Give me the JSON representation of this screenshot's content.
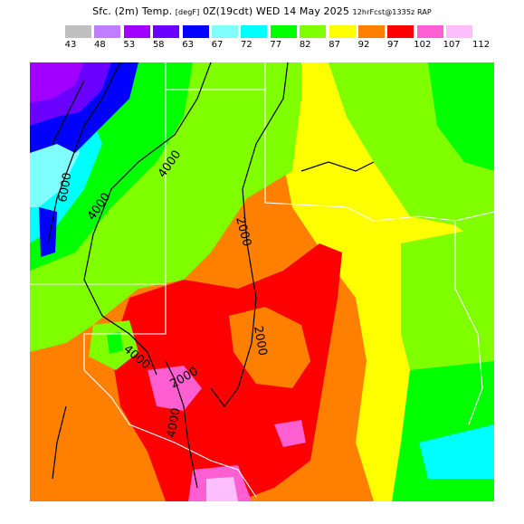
{
  "title": {
    "prefix": "Sfc. (2m) Temp.",
    "units": "[degF]",
    "valid": "0Z(19cdt)",
    "date": "WED 14 May 2025",
    "run": "12hrFcst@1335z RAP"
  },
  "legend": {
    "labels": [
      "43",
      "48",
      "53",
      "58",
      "63",
      "67",
      "72",
      "77",
      "82",
      "87",
      "92",
      "97",
      "102",
      "107",
      "112"
    ],
    "colors": [
      "#c0c0c0",
      "#c07dff",
      "#a000ff",
      "#6a00ff",
      "#0000ff",
      "#7fffff",
      "#00ffff",
      "#00ff00",
      "#7fff00",
      "#ffff00",
      "#ff7f00",
      "#ff0000",
      "#ff5fd0",
      "#ffbfff"
    ]
  },
  "map": {
    "contour_labels": [
      "6000",
      "4000",
      "4000",
      "2000",
      "2000",
      "4000",
      "2000",
      "4000"
    ]
  }
}
